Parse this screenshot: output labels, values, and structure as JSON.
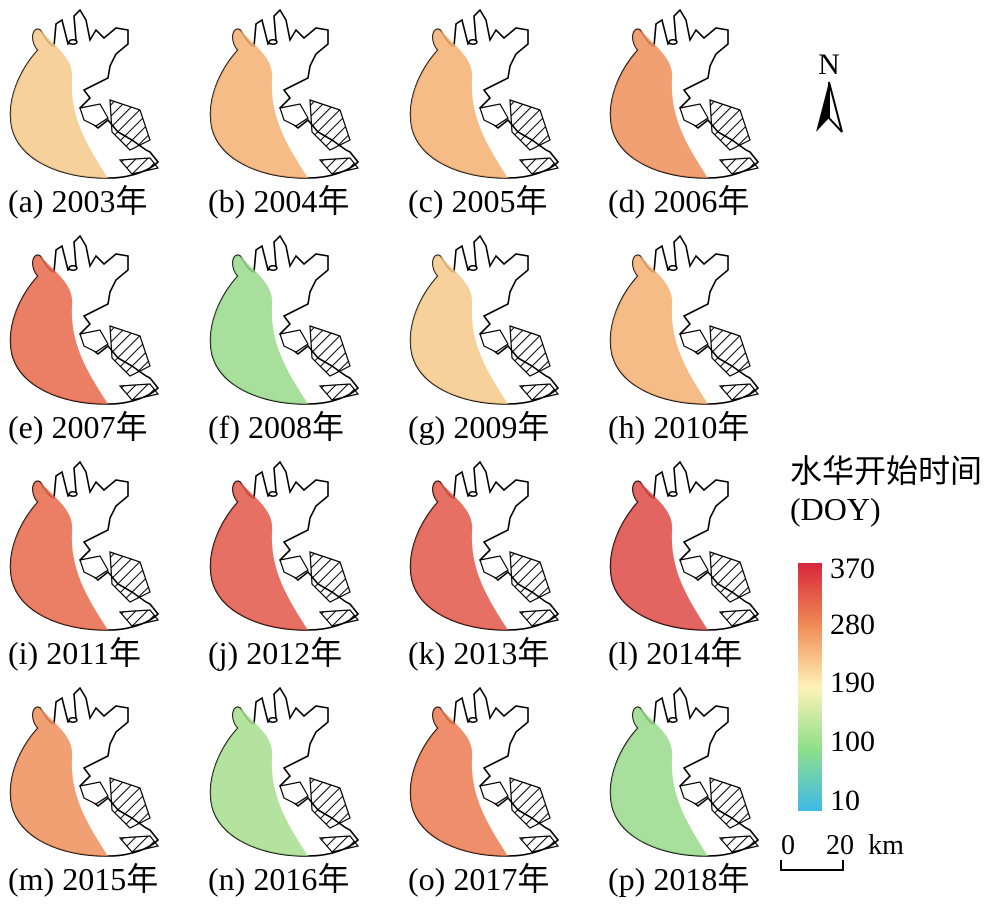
{
  "panels": [
    {
      "label": "(a) 2003年",
      "fill": "#f4c98a"
    },
    {
      "label": "(b) 2004年",
      "fill": "#f3b072"
    },
    {
      "label": "(c) 2005年",
      "fill": "#f3b072"
    },
    {
      "label": "(d) 2006年",
      "fill": "#ee8f5c"
    },
    {
      "label": "(e) 2007年",
      "fill": "#e8694a"
    },
    {
      "label": "(f) 2008年",
      "fill": "#9ad98b"
    },
    {
      "label": "(g) 2009年",
      "fill": "#f4c98a"
    },
    {
      "label": "(h) 2010年",
      "fill": "#f3b072"
    },
    {
      "label": "(i) 2011年",
      "fill": "#e8694a"
    },
    {
      "label": "(j) 2012年",
      "fill": "#e05748"
    },
    {
      "label": "(k) 2013年",
      "fill": "#e05748"
    },
    {
      "label": "(l) 2014年",
      "fill": "#dd4a46"
    },
    {
      "label": "(m) 2015年",
      "fill": "#ee8f5c"
    },
    {
      "label": "(n) 2016年",
      "fill": "#a6de8e"
    },
    {
      "label": "(o) 2017年",
      "fill": "#ec7a50"
    },
    {
      "label": "(p) 2018年",
      "fill": "#9ad98b"
    }
  ],
  "legend": {
    "title_line1": "水华开始时间",
    "title_line2": "(DOY)",
    "ticks": [
      "370",
      "280",
      "190",
      "100",
      "10"
    ],
    "colors": [
      "#d7263d",
      "#f08a55",
      "#fff2b8",
      "#8fe08a",
      "#3fb9e8"
    ]
  },
  "scale_bar": {
    "left_label": "0",
    "right_label": "20",
    "unit": "km"
  },
  "north_arrow": {
    "label": "N"
  }
}
